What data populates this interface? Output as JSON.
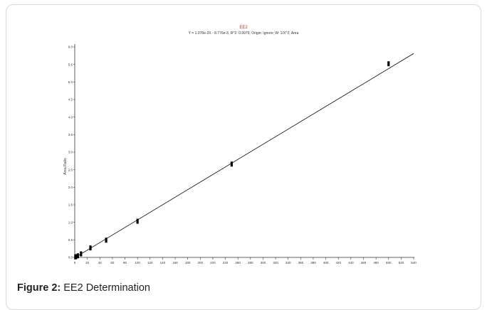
{
  "figure": {
    "caption_label": "Figure 2:",
    "caption_text": "EE2 Determination"
  },
  "chart_data": {
    "type": "scatter",
    "title": "EE2",
    "subtitle": "Y = 1.078e-2X - 8.776e-3, R^2: 0.9979; Origin: Ignore; W: 1/X^2; Area",
    "xlabel": "",
    "ylabel": "Area Ratio",
    "xlim": [
      0,
      540
    ],
    "ylim": [
      0,
      6.0
    ],
    "xticks": [
      "0",
      "20",
      "40",
      "60",
      "80",
      "100",
      "120",
      "140",
      "160",
      "180",
      "200",
      "220",
      "240",
      "260",
      "280",
      "300",
      "320",
      "340",
      "360",
      "380",
      "400",
      "420",
      "440",
      "460",
      "480",
      "500",
      "520",
      "540"
    ],
    "yticks": [
      "0.0",
      "0.5",
      "1.0",
      "1.5",
      "2.0",
      "2.5",
      "3.0",
      "3.5",
      "4.0",
      "4.5",
      "5.0",
      "5.5",
      "6.0"
    ],
    "series": [
      {
        "x": [
          1,
          2,
          5,
          10,
          25,
          50,
          100,
          250,
          500
        ],
        "y": [
          0.012,
          0.022,
          0.045,
          0.1,
          0.27,
          0.49,
          1.03,
          2.66,
          5.52
        ]
      }
    ],
    "fit_line": {
      "slope": 0.01078,
      "intercept": -0.008776,
      "x_range": [
        0,
        540
      ]
    },
    "grid": false,
    "colors": {
      "title": "#d62728",
      "line": "#000000",
      "points": "#000000"
    }
  }
}
